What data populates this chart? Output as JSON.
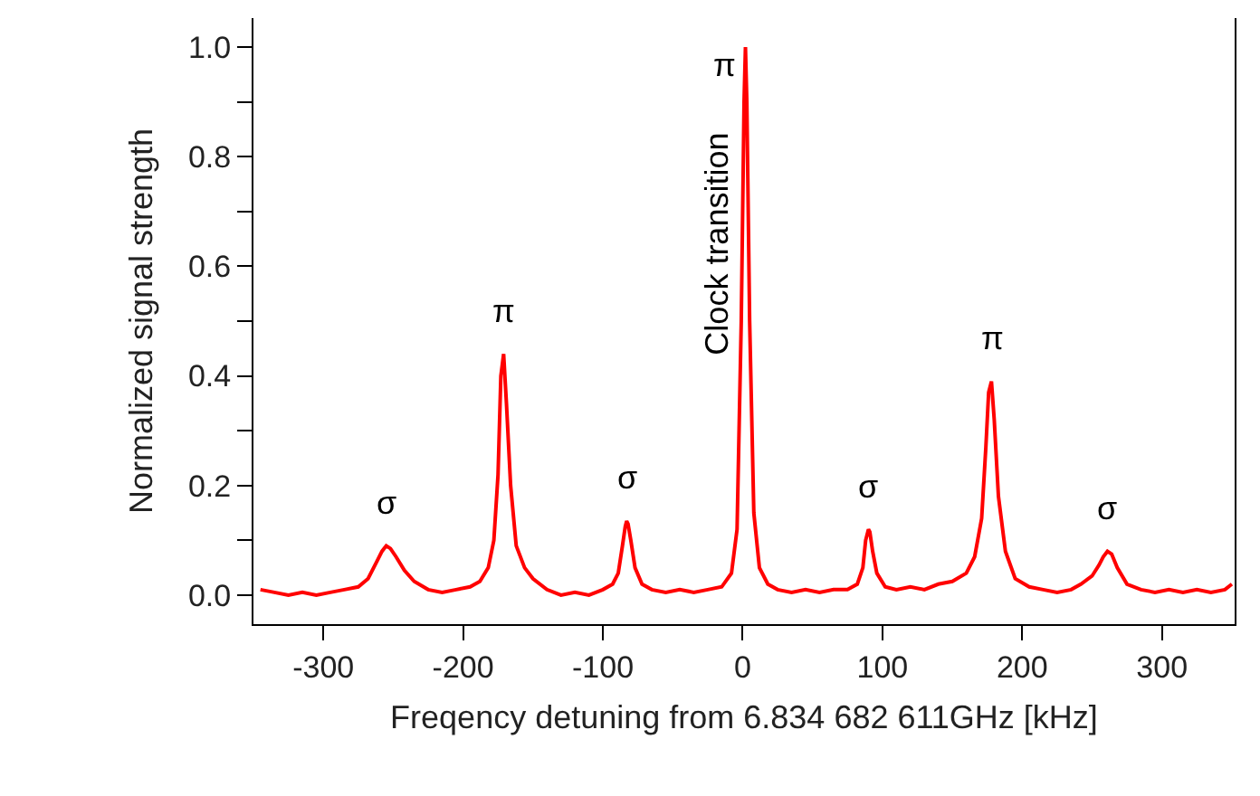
{
  "chart_data": {
    "type": "line",
    "xlabel": "Freqency detuning from 6.834 682 611GHz [kHz]",
    "ylabel": "Normalized signal strength",
    "x": [
      -345,
      -335,
      -325,
      -315,
      -305,
      -295,
      -285,
      -275,
      -268,
      -262,
      -258,
      -255,
      -252,
      -248,
      -242,
      -235,
      -225,
      -215,
      -205,
      -195,
      -188,
      -182,
      -178,
      -175,
      -173,
      -171,
      -169,
      -166,
      -162,
      -156,
      -150,
      -140,
      -130,
      -120,
      -110,
      -100,
      -93,
      -89,
      -86,
      -84,
      -83,
      -82,
      -80,
      -77,
      -72,
      -65,
      -55,
      -45,
      -35,
      -25,
      -15,
      -8,
      -4,
      -1,
      1,
      2,
      3,
      5,
      8,
      12,
      18,
      25,
      35,
      45,
      55,
      65,
      75,
      82,
      86,
      88,
      90,
      91,
      93,
      96,
      102,
      110,
      120,
      130,
      140,
      150,
      160,
      166,
      171,
      174,
      176,
      178,
      180,
      183,
      188,
      195,
      205,
      215,
      225,
      235,
      242,
      250,
      255,
      258,
      261,
      264,
      268,
      275,
      285,
      295,
      305,
      315,
      325,
      335,
      345,
      350
    ],
    "series": [
      {
        "color": "#ff0000",
        "values": [
          0.01,
          0.005,
          0.0,
          0.005,
          0.0,
          0.005,
          0.01,
          0.015,
          0.03,
          0.06,
          0.08,
          0.09,
          0.085,
          0.07,
          0.045,
          0.025,
          0.01,
          0.005,
          0.01,
          0.015,
          0.025,
          0.05,
          0.1,
          0.22,
          0.4,
          0.44,
          0.35,
          0.2,
          0.09,
          0.05,
          0.03,
          0.01,
          0.0,
          0.005,
          0.0,
          0.01,
          0.02,
          0.04,
          0.09,
          0.125,
          0.135,
          0.13,
          0.1,
          0.05,
          0.02,
          0.01,
          0.005,
          0.01,
          0.005,
          0.01,
          0.015,
          0.04,
          0.12,
          0.5,
          0.9,
          1.0,
          0.9,
          0.5,
          0.15,
          0.05,
          0.02,
          0.01,
          0.005,
          0.01,
          0.005,
          0.01,
          0.01,
          0.02,
          0.05,
          0.1,
          0.12,
          0.115,
          0.08,
          0.04,
          0.015,
          0.01,
          0.015,
          0.01,
          0.02,
          0.025,
          0.04,
          0.07,
          0.14,
          0.27,
          0.37,
          0.39,
          0.32,
          0.18,
          0.08,
          0.03,
          0.015,
          0.01,
          0.005,
          0.01,
          0.02,
          0.035,
          0.055,
          0.07,
          0.08,
          0.075,
          0.05,
          0.02,
          0.01,
          0.005,
          0.01,
          0.005,
          0.01,
          0.005,
          0.01,
          0.02
        ]
      }
    ],
    "xlim": [
      -350,
      352
    ],
    "ylim": [
      -0.053,
      1.053
    ],
    "xticks": [
      -300,
      -200,
      -100,
      0,
      100,
      200,
      300
    ],
    "yticks": [
      {
        "value": 0,
        "label": "0.0"
      },
      {
        "value": 0.1,
        "label": null
      },
      {
        "value": 0.2,
        "label": "0.2"
      },
      {
        "value": 0.3,
        "label": null
      },
      {
        "value": 0.4,
        "label": "0.4"
      },
      {
        "value": 0.5,
        "label": null
      },
      {
        "value": 0.6,
        "label": "0.6"
      },
      {
        "value": 0.7,
        "label": null
      },
      {
        "value": 0.8,
        "label": "0.8"
      },
      {
        "value": 0.9,
        "label": null
      },
      {
        "value": 1,
        "label": "1.0"
      }
    ],
    "grid": false,
    "legend": false,
    "marker": "none",
    "line_style": "solid",
    "annotations": [
      {
        "text": "σ",
        "x": -255,
        "y": 0.09
      },
      {
        "text": "π",
        "x": -171,
        "y": 0.44
      },
      {
        "text": "σ",
        "x": -83,
        "y": 0.135
      },
      {
        "text": "π",
        "x": 2,
        "y": 1
      },
      {
        "text": "Clock transition",
        "x": 2,
        "y": 1
      },
      {
        "text": "σ",
        "x": 90,
        "y": 0.12
      },
      {
        "text": "π",
        "x": 178,
        "y": 0.39
      },
      {
        "text": "σ",
        "x": 261,
        "y": 0.08
      }
    ]
  }
}
